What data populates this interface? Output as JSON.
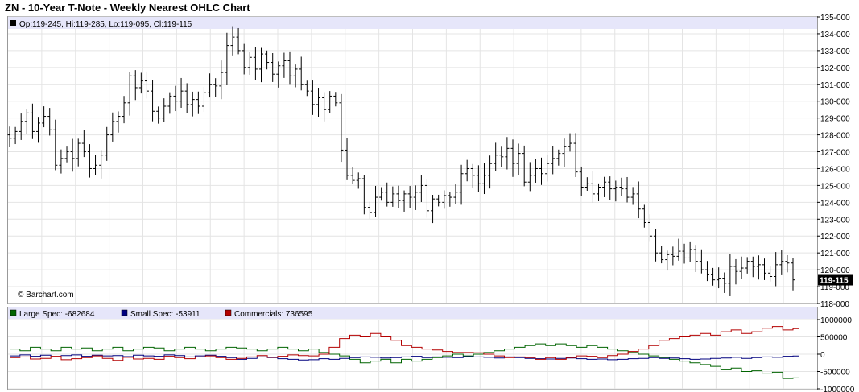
{
  "title": "ZN - 10-Year T-Note - Weekly Nearest OHLC Chart",
  "copyright": "© Barchart.com",
  "colors": {
    "large_spec": "#006400",
    "small_spec": "#00007f",
    "commercials": "#b40000",
    "bar": "#000000",
    "info_band": "#e6e6fa",
    "grid": "#e4e4e4"
  },
  "chart_data": [
    {
      "type": "ohlc",
      "title": "ZN - 10-Year T-Note - Weekly Nearest OHLC Chart",
      "info": "Op:119-245, Hi:119-285, Lo:119-095, Cl:119-115",
      "last_label": "119-115",
      "last_value": 119.36,
      "ylim": [
        118,
        135
      ],
      "y_ticks": [
        "118-000",
        "119-000",
        "120-000",
        "121-000",
        "122-000",
        "123-000",
        "124-000",
        "125-000",
        "126-000",
        "127-000",
        "128-000",
        "129-000",
        "130-000",
        "131-000",
        "132-000",
        "133-000",
        "134-000",
        "135-000"
      ],
      "y_tick_values": [
        118,
        119,
        120,
        121,
        122,
        123,
        124,
        125,
        126,
        127,
        128,
        129,
        130,
        131,
        132,
        133,
        134,
        135
      ],
      "grid": true,
      "closes": [
        127.8,
        128.2,
        128.8,
        129.3,
        128.2,
        128.7,
        129.1,
        128.3,
        126.2,
        126.6,
        127.0,
        126.6,
        127.5,
        127.0,
        126.0,
        126.2,
        126.8,
        128.0,
        128.8,
        129.1,
        129.9,
        131.5,
        130.8,
        131.2,
        130.6,
        129.4,
        129.0,
        129.7,
        130.3,
        130.0,
        130.6,
        129.8,
        130.1,
        129.7,
        130.5,
        131.0,
        130.9,
        131.7,
        133.3,
        133.8,
        133.0,
        132.0,
        132.6,
        131.9,
        132.8,
        132.3,
        131.6,
        132.1,
        132.4,
        131.5,
        131.9,
        131.0,
        130.6,
        129.8,
        130.2,
        129.5,
        130.3,
        129.9,
        127.1,
        125.6,
        125.3,
        125.4,
        123.7,
        123.4,
        124.3,
        124.6,
        124.0,
        124.5,
        124.1,
        124.5,
        124.3,
        124.6,
        125.0,
        123.5,
        124.2,
        124.0,
        124.4,
        124.3,
        124.6,
        125.7,
        126.0,
        125.6,
        125.1,
        125.6,
        126.3,
        126.8,
        126.7,
        127.2,
        126.3,
        126.9,
        125.2,
        125.6,
        126.0,
        125.7,
        126.3,
        126.6,
        126.9,
        127.3,
        127.5,
        125.8,
        124.9,
        125.1,
        124.5,
        124.9,
        125.2,
        124.8,
        124.9,
        124.8,
        124.3,
        124.5,
        123.6,
        122.8,
        122.0,
        121.0,
        120.6,
        120.9,
        120.8,
        121.1,
        120.7,
        121.2,
        120.5,
        120.0,
        119.7,
        119.4,
        119.5,
        119.2,
        120.2,
        119.9,
        120.1,
        120.5,
        120.2,
        120.3,
        119.8,
        119.6,
        120.3,
        120.5,
        120.4,
        119.4
      ]
    },
    {
      "type": "line",
      "legend": [
        "Large Spec: -682684",
        "Small Spec: -53911",
        "Commercials: 736595"
      ],
      "ylim": [
        -1000000,
        1000000
      ],
      "y_ticks": [
        "1000000",
        "500000",
        "0",
        "-500000",
        "-1000000"
      ],
      "y_tick_values": [
        1000000,
        500000,
        0,
        -500000,
        -1000000
      ],
      "grid": true,
      "series": [
        {
          "name": "Large Spec",
          "values": [
            150000,
            100000,
            200000,
            150000,
            100000,
            200000,
            150000,
            180000,
            100000,
            150000,
            200000,
            100000,
            150000,
            200000,
            180000,
            100000,
            150000,
            200000,
            150000,
            100000,
            150000,
            200000,
            180000,
            150000,
            100000,
            150000,
            200000,
            150000,
            100000,
            150000,
            50000,
            0,
            -50000,
            -150000,
            -250000,
            -200000,
            -150000,
            -250000,
            -150000,
            -200000,
            -150000,
            -100000,
            -50000,
            0,
            -50000,
            0,
            50000,
            100000,
            150000,
            200000,
            250000,
            300000,
            250000,
            300000,
            250000,
            200000,
            250000,
            200000,
            150000,
            100000,
            50000,
            0,
            -50000,
            -100000,
            -150000,
            -200000,
            -250000,
            -300000,
            -350000,
            -450000,
            -400000,
            -500000,
            -480000,
            -550000,
            -520000,
            -700000,
            -682684
          ]
        },
        {
          "name": "Small Spec",
          "values": [
            -50000,
            -20000,
            -60000,
            -30000,
            -70000,
            -40000,
            -20000,
            -60000,
            -30000,
            -50000,
            -40000,
            -70000,
            -30000,
            -50000,
            -60000,
            -20000,
            -40000,
            -80000,
            -50000,
            -30000,
            -60000,
            -100000,
            -150000,
            -120000,
            -80000,
            -100000,
            -130000,
            -150000,
            -170000,
            -160000,
            -130000,
            -150000,
            -120000,
            -100000,
            -80000,
            -90000,
            -110000,
            -100000,
            -80000,
            -60000,
            -100000,
            -80000,
            -90000,
            -100000,
            -70000,
            -80000,
            -90000,
            -110000,
            -80000,
            -100000,
            -120000,
            -130000,
            -140000,
            -120000,
            -110000,
            -130000,
            -150000,
            -140000,
            -160000,
            -150000,
            -130000,
            -120000,
            -100000,
            -120000,
            -110000,
            -130000,
            -150000,
            -140000,
            -120000,
            -110000,
            -90000,
            -120000,
            -100000,
            -80000,
            -90000,
            -60000,
            -53911
          ]
        },
        {
          "name": "Commercials",
          "values": [
            -100000,
            -80000,
            -140000,
            -120000,
            -60000,
            -160000,
            -130000,
            -100000,
            -50000,
            -120000,
            -180000,
            -90000,
            -140000,
            -120000,
            -150000,
            -60000,
            -100000,
            -130000,
            -80000,
            -50000,
            -100000,
            -150000,
            -120000,
            -80000,
            -40000,
            -90000,
            -60000,
            -20000,
            -40000,
            -50000,
            0,
            200000,
            450000,
            550000,
            500000,
            600000,
            500000,
            400000,
            250000,
            200000,
            150000,
            120000,
            80000,
            50000,
            50000,
            40000,
            0,
            -50000,
            -100000,
            -80000,
            -100000,
            -150000,
            -100000,
            -150000,
            -100000,
            -50000,
            -60000,
            -100000,
            -40000,
            0,
            80000,
            150000,
            250000,
            400000,
            450000,
            500000,
            550000,
            600000,
            550000,
            650000,
            700000,
            600000,
            650000,
            750000,
            800000,
            700000,
            736595
          ]
        }
      ]
    }
  ]
}
